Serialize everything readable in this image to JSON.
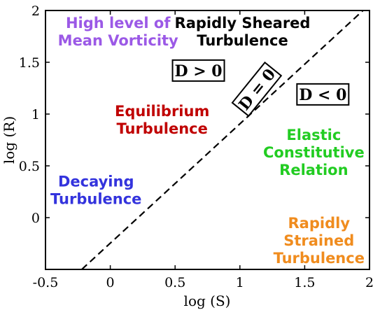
{
  "chart_data": {
    "type": "line",
    "xlabel": "log (S)",
    "ylabel": "log (R)",
    "xlim": [
      -0.5,
      2
    ],
    "ylim": [
      -0.5,
      2
    ],
    "x_ticks": [
      "-0.5",
      "0",
      "0.5",
      "1",
      "1.5",
      "2"
    ],
    "y_ticks": [
      "0",
      "0.5",
      "1",
      "1.5",
      "2"
    ],
    "series": [
      {
        "style": "dashed",
        "color": "#000000",
        "x": [
          -0.22,
          1.95
        ],
        "y": [
          -0.5,
          2.0
        ]
      }
    ],
    "annotations": [
      {
        "lines": [
          "High level of",
          "Mean Vorticity"
        ],
        "color": "#9b59e6",
        "x": 0.06,
        "y": 1.83
      },
      {
        "lines": [
          "Rapidly Sheared",
          "Turbulence"
        ],
        "color": "#000000",
        "x": 1.02,
        "y": 1.83
      },
      {
        "lines": [
          "Equilibrium",
          "Turbulence"
        ],
        "color": "#c00000",
        "x": 0.4,
        "y": 0.98
      },
      {
        "lines": [
          "Elastic",
          "Constitutive",
          "Relation"
        ],
        "color": "#22cc22",
        "x": 1.57,
        "y": 0.75
      },
      {
        "lines": [
          "Decaying",
          "Turbulence"
        ],
        "color": "#3333dd",
        "x": -0.11,
        "y": 0.3
      },
      {
        "lines": [
          "Rapidly",
          "Strained",
          "Turbulence"
        ],
        "color": "#f08c1e",
        "x": 1.61,
        "y": -0.1
      }
    ],
    "boxes": [
      {
        "text": "D > 0",
        "x": 0.68,
        "y": 1.42,
        "rotate": 0
      },
      {
        "text": "D < 0",
        "x": 1.64,
        "y": 1.19,
        "rotate": 0
      },
      {
        "text": "D = 0",
        "x": 1.13,
        "y": 1.24,
        "rotate": -51
      }
    ]
  }
}
